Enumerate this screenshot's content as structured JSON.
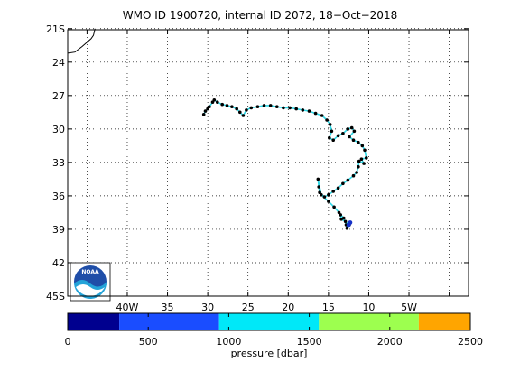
{
  "title": "WMO ID 1900720, internal ID 2072, 18−Oct−2018",
  "map": {
    "lon_range": [
      -47.4,
      2.4
    ],
    "lat_range": [
      -21.1,
      -45.0
    ],
    "lat_ticks": [
      {
        "value": -21,
        "label": "21S"
      },
      {
        "value": -24,
        "label": "24"
      },
      {
        "value": -27,
        "label": "27"
      },
      {
        "value": -30,
        "label": "30"
      },
      {
        "value": -33,
        "label": "33"
      },
      {
        "value": -36,
        "label": "36"
      },
      {
        "value": -39,
        "label": "39"
      },
      {
        "value": -42,
        "label": "42"
      },
      {
        "value": -45,
        "label": "45S"
      }
    ],
    "lon_ticks": [
      {
        "value": -40,
        "label": "40W"
      },
      {
        "value": -35,
        "label": "35"
      },
      {
        "value": -30,
        "label": "30"
      },
      {
        "value": -25,
        "label": "25"
      },
      {
        "value": -20,
        "label": "20"
      },
      {
        "value": -15,
        "label": "15"
      },
      {
        "value": -10,
        "label": "10"
      },
      {
        "value": -5,
        "label": "5W"
      }
    ],
    "lon_grid_extra": [
      -45,
      0
    ],
    "grid": "dotted",
    "coastline": [
      [
        -44.0,
        -21.0
      ],
      [
        -44.2,
        -21.6
      ],
      [
        -44.5,
        -21.9
      ],
      [
        -45.6,
        -22.6
      ],
      [
        -46.5,
        -23.1
      ],
      [
        -47.4,
        -23.2
      ]
    ],
    "track_colors": {
      "line": "#2fd7e6",
      "point": "#000000",
      "deep_point": "#1530c8"
    },
    "track": [
      [
        -30.5,
        -28.7
      ],
      [
        -30.3,
        -28.4
      ],
      [
        -30.0,
        -28.2
      ],
      [
        -29.8,
        -28.0
      ],
      [
        -29.4,
        -27.6
      ],
      [
        -29.2,
        -27.4
      ],
      [
        -28.8,
        -27.6
      ],
      [
        -28.2,
        -27.8
      ],
      [
        -27.6,
        -27.9
      ],
      [
        -27.0,
        -28.0
      ],
      [
        -26.4,
        -28.2
      ],
      [
        -26.0,
        -28.5
      ],
      [
        -25.6,
        -28.8
      ],
      [
        -25.2,
        -28.3
      ],
      [
        -24.6,
        -28.1
      ],
      [
        -23.8,
        -28.0
      ],
      [
        -23.0,
        -27.9
      ],
      [
        -22.2,
        -27.9
      ],
      [
        -21.4,
        -28.0
      ],
      [
        -20.6,
        -28.1
      ],
      [
        -19.8,
        -28.1
      ],
      [
        -19.0,
        -28.2
      ],
      [
        -18.2,
        -28.3
      ],
      [
        -17.4,
        -28.4
      ],
      [
        -16.6,
        -28.6
      ],
      [
        -15.8,
        -28.8
      ],
      [
        -15.2,
        -29.2
      ],
      [
        -14.8,
        -29.6
      ],
      [
        -14.6,
        -30.2
      ],
      [
        -14.9,
        -30.8
      ],
      [
        -14.4,
        -31.0
      ],
      [
        -13.8,
        -30.6
      ],
      [
        -13.2,
        -30.4
      ],
      [
        -12.6,
        -30.0
      ],
      [
        -12.1,
        -29.9
      ],
      [
        -11.8,
        -30.2
      ],
      [
        -12.4,
        -30.7
      ],
      [
        -11.9,
        -31.0
      ],
      [
        -11.3,
        -31.2
      ],
      [
        -10.8,
        -31.5
      ],
      [
        -10.5,
        -31.9
      ],
      [
        -10.3,
        -32.6
      ],
      [
        -10.9,
        -32.7
      ],
      [
        -10.6,
        -33.1
      ],
      [
        -11.2,
        -32.9
      ],
      [
        -11.3,
        -33.4
      ],
      [
        -11.5,
        -33.9
      ],
      [
        -11.9,
        -34.2
      ],
      [
        -12.6,
        -34.6
      ],
      [
        -13.2,
        -34.9
      ],
      [
        -13.8,
        -35.3
      ],
      [
        -14.4,
        -35.6
      ],
      [
        -15.0,
        -35.9
      ],
      [
        -15.5,
        -36.1
      ],
      [
        -16.1,
        -35.7
      ],
      [
        -16.2,
        -35.2
      ],
      [
        -16.3,
        -34.5
      ],
      [
        -15.9,
        -35.9
      ],
      [
        -15.0,
        -36.5
      ],
      [
        -14.3,
        -37.0
      ],
      [
        -13.7,
        -37.5
      ],
      [
        -13.1,
        -38.0
      ],
      [
        -12.8,
        -38.6
      ],
      [
        -12.7,
        -38.9
      ],
      [
        -12.4,
        -38.6
      ],
      [
        -12.9,
        -38.3
      ],
      [
        -13.4,
        -38.1
      ],
      [
        -13.5,
        -37.7
      ]
    ],
    "deep_points": [
      [
        -12.3,
        -38.4
      ],
      [
        -12.5,
        -38.6
      ]
    ]
  },
  "colorbar": {
    "label": "pressure [dbar]",
    "range": [
      0,
      2500
    ],
    "ticks": [
      {
        "value": 0,
        "label": "0"
      },
      {
        "value": 500,
        "label": "500"
      },
      {
        "value": 1000,
        "label": "1000"
      },
      {
        "value": 1500,
        "label": "1500"
      },
      {
        "value": 2000,
        "label": "2000"
      },
      {
        "value": 2500,
        "label": "2500"
      }
    ],
    "bins": [
      {
        "from": 0,
        "to": 320,
        "color": "#00008f"
      },
      {
        "from": 320,
        "to": 940,
        "color": "#1a4dff"
      },
      {
        "from": 940,
        "to": 1560,
        "color": "#00e8f8"
      },
      {
        "from": 1560,
        "to": 2180,
        "color": "#9dff4f"
      },
      {
        "from": 2180,
        "to": 2500,
        "color": "#ffa500"
      }
    ]
  },
  "logo": {
    "text": "NOAA",
    "icon": "noaa-logo-icon"
  }
}
